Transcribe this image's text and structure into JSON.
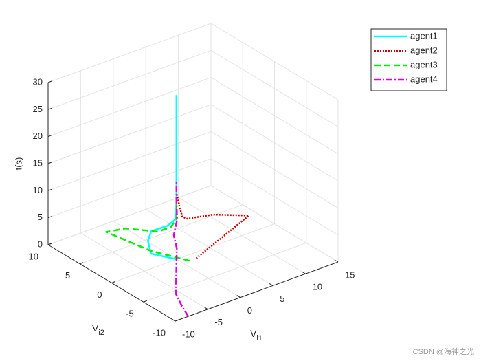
{
  "chart_data": {
    "type": "line3d",
    "x_label": "V",
    "x_label_sub": "i1",
    "y_label": "V",
    "y_label_sub": "i2",
    "z_label": "t(s)",
    "xlim": [
      -10,
      15
    ],
    "xticks": [
      -10,
      -5,
      0,
      5,
      10,
      15
    ],
    "ylim": [
      -10,
      10
    ],
    "yticks": [
      -10,
      -5,
      0,
      5,
      10
    ],
    "zlim": [
      0,
      30
    ],
    "zticks": [
      0,
      5,
      10,
      15,
      20,
      25,
      30
    ],
    "grid": true,
    "legend_position": "top-right",
    "series": [
      {
        "name": "agent1",
        "color": "#00ffff",
        "dash": "solid",
        "x": [
          0,
          -2,
          -2,
          -1,
          1,
          2,
          2,
          2,
          2
        ],
        "y": [
          0,
          2,
          2.5,
          3,
          2.5,
          2.2,
          2.1,
          2.1,
          2.1
        ],
        "z": [
          0,
          0.5,
          2.5,
          3.5,
          4,
          5,
          8,
          15,
          28
        ]
      },
      {
        "name": "agent2",
        "color": "#cc0000",
        "dash": "dotted",
        "x": [
          2,
          6,
          10,
          13,
          8,
          4,
          3,
          2.5,
          2
        ],
        "y": [
          -1,
          0,
          1,
          2,
          2.5,
          2.5,
          2.2,
          2.1,
          2.1
        ],
        "z": [
          0,
          0.5,
          1,
          1,
          3,
          4,
          5,
          7,
          10
        ]
      },
      {
        "name": "agent3",
        "color": "#00ee00",
        "dash": "dashed",
        "x": [
          1,
          -2,
          -5,
          -3,
          0,
          1.5,
          2,
          2
        ],
        "y": [
          -1,
          2,
          6,
          5,
          3,
          2.5,
          2.1,
          2.1
        ],
        "z": [
          0,
          1,
          3,
          3.5,
          3,
          3.5,
          5,
          8
        ]
      },
      {
        "name": "agent4",
        "color": "#dd00dd",
        "dash": "dashdot",
        "x": [
          -8,
          -7,
          -6,
          -4,
          -2,
          0,
          1,
          2,
          2,
          2
        ],
        "y": [
          -10,
          -8,
          -6,
          -4,
          -2,
          0,
          1.5,
          2,
          2.1,
          2.1
        ],
        "z": [
          0,
          0,
          0.5,
          1,
          1.5,
          2,
          3,
          5,
          8,
          12
        ]
      }
    ],
    "watermark": "CSDN @海神之光"
  }
}
